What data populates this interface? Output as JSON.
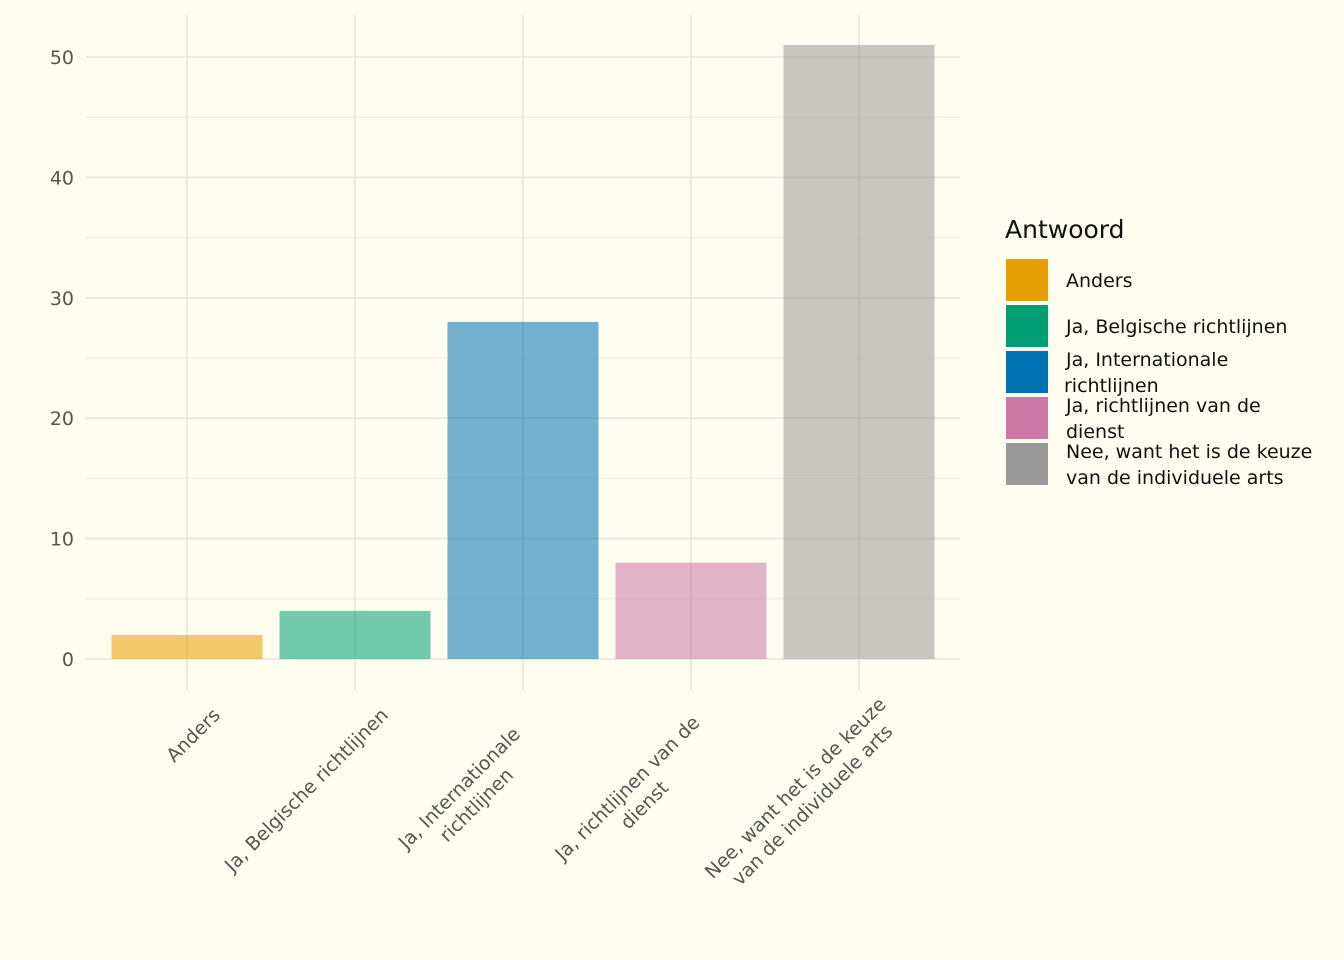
{
  "chart_data": {
    "type": "bar",
    "categories": [
      "Anders",
      "Ja, Belgische richtlijnen",
      "Ja, Internationale richtlijnen",
      "Ja, richtlijnen van de dienst",
      "Nee, want het is de keuze van de individuele arts"
    ],
    "x_tick_lines": [
      [
        "Anders"
      ],
      [
        "Ja, Belgische richtlijnen"
      ],
      [
        "Ja, Internationale",
        "richtlijnen"
      ],
      [
        "Ja, richtlijnen van de",
        "dienst"
      ],
      [
        "Nee, want het is de keuze",
        "van de individuele arts"
      ]
    ],
    "values": [
      2,
      4,
      28,
      8,
      51
    ],
    "colors": [
      "#E69F00",
      "#009E73",
      "#0072B2",
      "#CC79A7",
      "#999999"
    ],
    "bar_opacity": 0.55,
    "ylim": [
      0,
      53.5
    ],
    "yticks": [
      0,
      10,
      20,
      30,
      40,
      50
    ],
    "xlabel": "",
    "ylabel": "",
    "grid": true,
    "legend": {
      "title": "Antwoord",
      "position": "right",
      "items": [
        {
          "label_lines": [
            "Anders"
          ],
          "color": "#E69F00"
        },
        {
          "label_lines": [
            "Ja, Belgische richtlijnen"
          ],
          "color": "#009E73"
        },
        {
          "label_lines": [
            "Ja, Internationale",
            "richtlijnen"
          ],
          "color": "#0072B2"
        },
        {
          "label_lines": [
            "Ja, richtlijnen van de",
            "dienst"
          ],
          "color": "#CC79A7"
        },
        {
          "label_lines": [
            "Nee, want het is de keuze",
            "van de individuele arts"
          ],
          "color": "#999999"
        }
      ]
    }
  }
}
